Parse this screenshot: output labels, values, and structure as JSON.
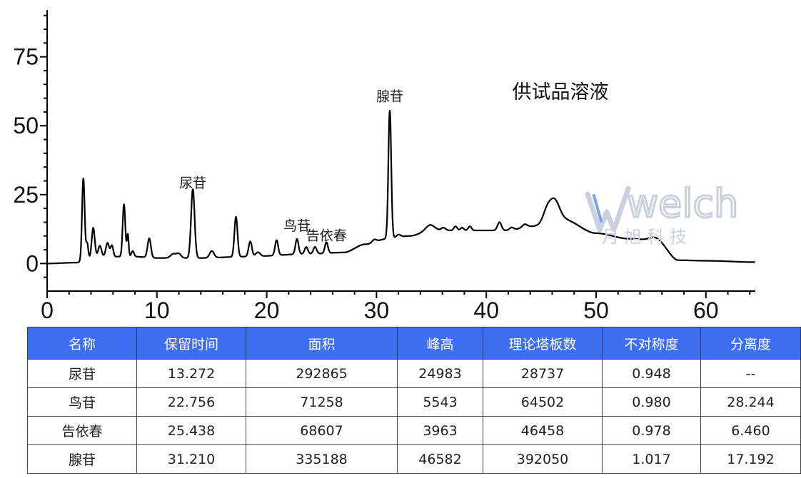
{
  "chart_data": {
    "type": "line",
    "title": "供试品溶液",
    "xlim": [
      0,
      64.5
    ],
    "ylim": [
      -10,
      92
    ],
    "x_ticks": [
      0,
      10,
      20,
      30,
      40,
      50,
      60
    ],
    "y_ticks": [
      0,
      25,
      50,
      75
    ],
    "baseline_trend": [
      [
        0,
        0
      ],
      [
        2.5,
        0.3
      ],
      [
        5,
        2.5
      ],
      [
        8,
        2.5
      ],
      [
        10,
        2
      ],
      [
        14,
        2
      ],
      [
        18,
        2.5
      ],
      [
        24,
        3.5
      ],
      [
        27,
        4
      ],
      [
        29,
        7
      ],
      [
        31,
        9
      ],
      [
        33,
        10
      ],
      [
        35,
        12
      ],
      [
        38,
        12
      ],
      [
        42,
        12
      ],
      [
        44,
        13.5
      ],
      [
        47,
        16
      ],
      [
        50,
        11
      ],
      [
        53,
        9
      ],
      [
        55.5,
        8.5
      ],
      [
        57.5,
        1.2
      ],
      [
        60,
        1
      ],
      [
        64.5,
        0.5
      ]
    ],
    "peaks": [
      {
        "rt": 3.3,
        "height": 30,
        "width": 0.12
      },
      {
        "rt": 3.65,
        "height": 6,
        "width": 0.1
      },
      {
        "rt": 4.2,
        "height": 11,
        "width": 0.14
      },
      {
        "rt": 4.8,
        "height": 4,
        "width": 0.15
      },
      {
        "rt": 5.5,
        "height": 5,
        "width": 0.15
      },
      {
        "rt": 5.9,
        "height": 4,
        "width": 0.12
      },
      {
        "rt": 7.0,
        "height": 19,
        "width": 0.12
      },
      {
        "rt": 7.35,
        "height": 8,
        "width": 0.08
      },
      {
        "rt": 7.8,
        "height": 2,
        "width": 0.12
      },
      {
        "rt": 9.3,
        "height": 7,
        "width": 0.15
      },
      {
        "rt": 11.5,
        "height": 1.5,
        "width": 0.25
      },
      {
        "rt": 12.0,
        "height": 1.5,
        "width": 0.2
      },
      {
        "rt": 13.272,
        "height": 24.983,
        "width": 0.16
      },
      {
        "rt": 15.0,
        "height": 2.5,
        "width": 0.2
      },
      {
        "rt": 17.2,
        "height": 14.5,
        "width": 0.14
      },
      {
        "rt": 18.5,
        "height": 5.5,
        "width": 0.15
      },
      {
        "rt": 19.2,
        "height": 1.5,
        "width": 0.2
      },
      {
        "rt": 20.9,
        "height": 5.5,
        "width": 0.14
      },
      {
        "rt": 22.756,
        "height": 5.543,
        "width": 0.14
      },
      {
        "rt": 23.6,
        "height": 2.5,
        "width": 0.15
      },
      {
        "rt": 24.4,
        "height": 2.5,
        "width": 0.15
      },
      {
        "rt": 25.438,
        "height": 3.963,
        "width": 0.14
      },
      {
        "rt": 29.8,
        "height": 1,
        "width": 0.2
      },
      {
        "rt": 31.21,
        "height": 46.582,
        "width": 0.13
      },
      {
        "rt": 32.0,
        "height": 1,
        "width": 0.2
      },
      {
        "rt": 34.9,
        "height": 2,
        "width": 0.4
      },
      {
        "rt": 36.1,
        "height": 1,
        "width": 0.2
      },
      {
        "rt": 37.2,
        "height": 1.5,
        "width": 0.15
      },
      {
        "rt": 37.8,
        "height": 1,
        "width": 0.15
      },
      {
        "rt": 38.5,
        "height": 1.5,
        "width": 0.15
      },
      {
        "rt": 41.2,
        "height": 3,
        "width": 0.18
      },
      {
        "rt": 42.3,
        "height": 1,
        "width": 0.2
      },
      {
        "rt": 43.5,
        "height": 1,
        "width": 0.2
      },
      {
        "rt": 45.5,
        "height": 4,
        "width": 0.35
      },
      {
        "rt": 46.2,
        "height": 7.5,
        "width": 0.45
      },
      {
        "rt": 55.2,
        "height": 1,
        "width": 0.4
      }
    ],
    "annotations": [
      {
        "text": "尿苷",
        "x": 13.272,
        "y": 27.5
      },
      {
        "text": "鸟苷",
        "x": 22.756,
        "y": 12
      },
      {
        "text": "告依春",
        "x": 25.438,
        "y": 8.5
      },
      {
        "text": "腺苷",
        "x": 31.21,
        "y": 59
      }
    ],
    "line_color": "#000000",
    "grid": false
  },
  "watermark": {
    "latin": "welch",
    "cn": "月 旭 科 技",
    "color": "#c9d1de"
  },
  "table": {
    "header_bg": "#3d6ff0",
    "columns": [
      "名称",
      "保留时间",
      "面积",
      "峰高",
      "理论塔板数",
      "不对称度",
      "分离度"
    ],
    "rows": [
      [
        "尿苷",
        "13.272",
        "292865",
        "24983",
        "28737",
        "0.948",
        "--"
      ],
      [
        "鸟苷",
        "22.756",
        "71258",
        "5543",
        "64502",
        "0.980",
        "28.244"
      ],
      [
        "告依春",
        "25.438",
        "68607",
        "3963",
        "46458",
        "0.978",
        "6.460"
      ],
      [
        "腺苷",
        "31.210",
        "335188",
        "46582",
        "392050",
        "1.017",
        "17.192"
      ]
    ]
  }
}
